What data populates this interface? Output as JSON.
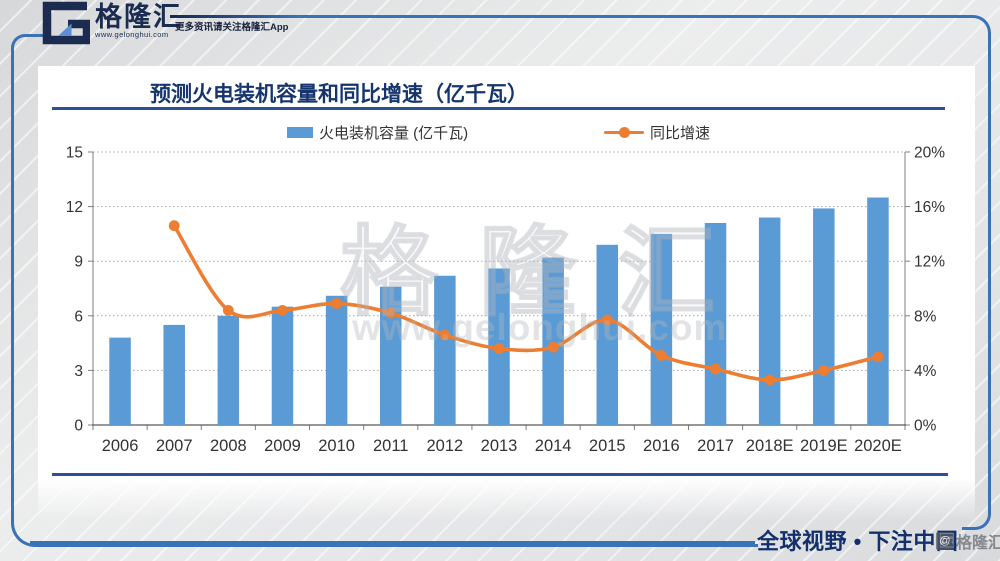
{
  "header": {
    "logo_brand": "格隆汇",
    "logo_site": "www.gelonghui.com",
    "tagline": "更多资讯请关注格隆汇App"
  },
  "chart": {
    "title": "预测火电装机容量和同比增速（亿千瓦）"
  },
  "chart_data": {
    "type": "bar+line",
    "title": "预测火电装机容量和同比增速（亿千瓦）",
    "categories": [
      "2006",
      "2007",
      "2008",
      "2009",
      "2010",
      "2011",
      "2012",
      "2013",
      "2014",
      "2015",
      "2016",
      "2017",
      "2018E",
      "2019E",
      "2020E"
    ],
    "series": [
      {
        "name": "火电装机容量 (亿千瓦)",
        "type": "bar",
        "y_axis": "left",
        "color": "#5B9BD5",
        "values": [
          4.8,
          5.5,
          6.0,
          6.5,
          7.1,
          7.6,
          8.2,
          8.6,
          9.2,
          9.9,
          10.5,
          11.1,
          11.4,
          11.9,
          12.5
        ]
      },
      {
        "name": "同比增速",
        "type": "line",
        "y_axis": "right",
        "color": "#ED7D31",
        "values": [
          null,
          14.6,
          8.4,
          8.4,
          8.9,
          8.2,
          6.6,
          5.6,
          5.7,
          7.7,
          5.1,
          4.1,
          3.3,
          4.0,
          5.0
        ]
      }
    ],
    "left_axis": {
      "min": 0,
      "max": 15,
      "ticks": [
        "0",
        "3",
        "6",
        "9",
        "12",
        "15"
      ]
    },
    "right_axis": {
      "min": 0,
      "max": 20,
      "ticks": [
        "0%",
        "4%",
        "8%",
        "12%",
        "16%",
        "20%"
      ]
    },
    "legend_position": "top",
    "grid": "horizontal-dotted"
  },
  "watermark": {
    "main": "格隆汇",
    "sub": "www.gelonghui.com"
  },
  "footer": {
    "slogan": "全球视野 • 下注中国",
    "watermark_at": "@",
    "watermark_label": "格隆汇"
  }
}
